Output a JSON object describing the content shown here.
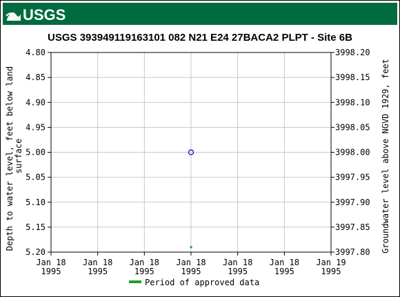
{
  "header": {
    "agency": "USGS",
    "brand_color": "#006b3f"
  },
  "chart_data": {
    "type": "scatter",
    "title": "USGS 393949119163101 082  N21 E24 27BACA2    PLPT - Site 6B",
    "ylabel_left": "Depth to water level, feet below land surface",
    "ylabel_left_lines": [
      "Depth to water level, feet below land",
      "surface"
    ],
    "ylabel_right": "Groundwater level above NGVD 1929, feet",
    "left_axis": {
      "ylim": [
        4.8,
        5.2
      ],
      "inverted": true,
      "ticks": [
        "4.80",
        "4.85",
        "4.90",
        "4.95",
        "5.00",
        "5.05",
        "5.10",
        "5.15",
        "5.20"
      ]
    },
    "right_axis": {
      "ylim": [
        3998.2,
        3997.8
      ],
      "ticks": [
        "3998.20",
        "3998.15",
        "3998.10",
        "3998.05",
        "3998.00",
        "3997.95",
        "3997.90",
        "3997.85",
        "3997.80"
      ]
    },
    "x_ticks": [
      {
        "line1": "Jan 18",
        "line2": "1995"
      },
      {
        "line1": "Jan 18",
        "line2": "1995"
      },
      {
        "line1": "Jan 18",
        "line2": "1995"
      },
      {
        "line1": "Jan 18",
        "line2": "1995"
      },
      {
        "line1": "Jan 18",
        "line2": "1995"
      },
      {
        "line1": "Jan 18",
        "line2": "1995"
      },
      {
        "line1": "Jan 19",
        "line2": "1995"
      }
    ],
    "grid": true,
    "series": [
      {
        "kind": "measurement",
        "marker": "open-circle",
        "color": "#0000cc",
        "points": [
          {
            "x": "1995-01-18 12:00",
            "y": 5.0
          }
        ]
      },
      {
        "kind": "approval-period",
        "name": "Period of approved data",
        "marker": "square",
        "color": "#22a022",
        "points": [
          {
            "x": "1995-01-18 12:00",
            "y": 5.19
          }
        ]
      }
    ],
    "legend": {
      "placement": "bottom-center",
      "entries": [
        {
          "label": "Period of approved data",
          "color": "#22a022"
        }
      ]
    }
  }
}
